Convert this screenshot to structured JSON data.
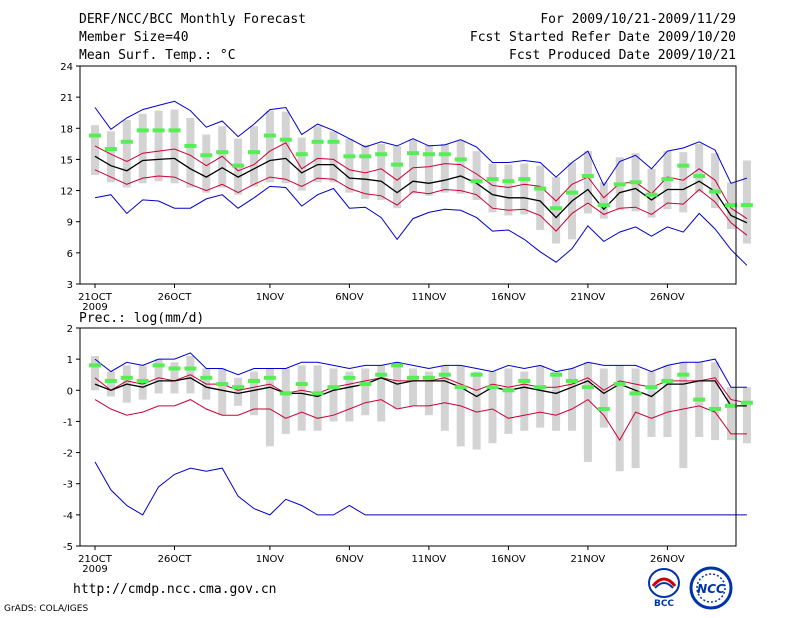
{
  "header": {
    "title": "DERF/NCC/BCC Monthly Forecast",
    "members": "Member Size=40",
    "variable": "Mean Surf. Temp.: °C",
    "period": "For 2009/10/21-2009/11/29",
    "started": "Fcst Started Refer Date 2009/10/20",
    "produced": "Fcst Produced Date 2009/10/21"
  },
  "footer": {
    "url": "http://cmdp.ncc.cma.gov.cn",
    "credit": "GrADS: COLA/IGES",
    "logo_left_text": "BCC",
    "logo_right_text": "NCC"
  },
  "colors": {
    "max": "#0000cc",
    "min": "#0000cc",
    "spread": "#cc0033",
    "mean": "#000000",
    "box": "#d3d3d3",
    "marker": "#55ee55"
  },
  "chart_data": [
    {
      "type": "line",
      "title": "Mean Surf. Temp.: °C",
      "ylim": [
        3,
        24
      ],
      "yticks": [
        3,
        6,
        9,
        12,
        15,
        18,
        21,
        24
      ],
      "xtick_labels": [
        "21OCT",
        "26OCT",
        "1NOV",
        "6NOV",
        "11NOV",
        "16NOV",
        "21NOV",
        "26NOV"
      ],
      "xtick_sub": "2009",
      "series": [
        {
          "name": "max",
          "values": [
            20.0,
            17.9,
            19.0,
            19.8,
            20.2,
            20.6,
            19.7,
            18.1,
            18.7,
            17.2,
            18.4,
            19.8,
            20.0,
            17.4,
            18.4,
            17.8,
            17.0,
            16.2,
            16.7,
            16.3,
            17.0,
            16.3,
            16.4,
            16.9,
            16.2,
            14.7,
            14.7,
            14.9,
            14.7,
            13.3,
            14.7,
            15.8,
            12.5,
            14.8,
            15.4,
            14.1,
            15.8,
            16.1,
            16.7,
            15.9,
            12.7,
            13.2
          ]
        },
        {
          "name": "upper",
          "values": [
            16.3,
            15.5,
            14.8,
            15.6,
            15.8,
            16.0,
            15.4,
            14.4,
            15.3,
            13.9,
            14.5,
            15.8,
            16.6,
            14.1,
            15.1,
            15.0,
            14.0,
            13.7,
            14.1,
            13.0,
            14.2,
            14.3,
            14.6,
            14.5,
            13.6,
            12.5,
            12.3,
            12.6,
            12.4,
            11.0,
            12.6,
            13.3,
            11.3,
            12.7,
            12.8,
            11.7,
            13.3,
            13.0,
            14.1,
            13.0,
            10.3,
            9.3
          ]
        },
        {
          "name": "mean",
          "values": [
            15.3,
            14.4,
            13.9,
            14.9,
            15.0,
            15.1,
            14.1,
            13.3,
            14.2,
            13.3,
            14.1,
            14.9,
            15.1,
            13.7,
            14.5,
            14.5,
            13.2,
            13.1,
            12.9,
            11.8,
            12.9,
            12.7,
            13.0,
            13.4,
            12.7,
            11.6,
            11.3,
            11.3,
            11.0,
            9.4,
            11.0,
            12.1,
            10.2,
            11.8,
            12.2,
            11.1,
            12.1,
            12.1,
            12.9,
            11.9,
            9.6,
            8.9
          ]
        },
        {
          "name": "lower",
          "values": [
            14.0,
            13.3,
            12.6,
            13.2,
            13.4,
            13.3,
            12.6,
            12.0,
            12.6,
            11.8,
            12.6,
            13.3,
            13.1,
            12.4,
            13.2,
            13.1,
            12.2,
            11.7,
            11.5,
            10.6,
            11.9,
            11.7,
            12.1,
            12.0,
            11.6,
            10.3,
            10.1,
            10.2,
            9.6,
            8.1,
            9.8,
            10.8,
            9.7,
            10.3,
            10.4,
            9.7,
            10.8,
            10.7,
            12.1,
            10.9,
            8.9,
            7.7
          ]
        },
        {
          "name": "min",
          "values": [
            11.3,
            11.6,
            9.8,
            11.1,
            11.0,
            10.3,
            10.3,
            11.2,
            11.6,
            10.3,
            11.3,
            12.4,
            12.3,
            10.5,
            11.6,
            12.2,
            10.3,
            10.4,
            9.4,
            7.3,
            9.3,
            9.9,
            10.2,
            10.1,
            9.4,
            8.1,
            8.2,
            7.3,
            6.1,
            5.1,
            6.4,
            8.6,
            7.1,
            8.0,
            8.5,
            7.6,
            8.5,
            8.0,
            9.8,
            8.3,
            6.3,
            4.8
          ]
        },
        {
          "name": "obs_marker",
          "values": [
            17.3,
            16.0,
            16.7,
            17.8,
            17.8,
            17.8,
            16.3,
            15.4,
            15.7,
            14.4,
            15.7,
            17.3,
            16.9,
            15.5,
            16.7,
            16.7,
            15.3,
            15.3,
            15.5,
            14.5,
            15.6,
            15.5,
            15.5,
            15.0,
            12.9,
            13.1,
            12.9,
            13.1,
            12.2,
            10.3,
            11.8,
            13.4,
            10.6,
            12.6,
            12.8,
            11.6,
            13.1,
            14.4,
            13.4,
            11.9,
            10.6,
            10.6
          ]
        },
        {
          "name": "box_top",
          "values": [
            18.3,
            17.7,
            18.8,
            19.4,
            19.7,
            19.8,
            19.0,
            17.4,
            18.2,
            17.0,
            18.2,
            19.7,
            19.6,
            17.1,
            18.2,
            17.7,
            17.0,
            16.4,
            16.5,
            16.3,
            16.9,
            16.4,
            16.5,
            16.8,
            15.8,
            14.6,
            14.5,
            14.6,
            14.4,
            13.3,
            14.7,
            15.8,
            12.8,
            15.2,
            15.6,
            14.1,
            15.8,
            15.7,
            16.5,
            15.6,
            12.8,
            14.9
          ]
        },
        {
          "name": "box_bottom",
          "values": [
            13.5,
            12.8,
            12.3,
            12.7,
            12.9,
            12.7,
            12.3,
            11.8,
            12.3,
            11.6,
            12.4,
            12.8,
            12.7,
            12.0,
            12.8,
            12.8,
            11.8,
            11.2,
            11.1,
            10.3,
            11.7,
            11.5,
            11.8,
            11.7,
            11.1,
            9.9,
            9.6,
            9.7,
            8.2,
            6.9,
            7.3,
            9.8,
            9.3,
            10.1,
            10.0,
            9.4,
            10.2,
            9.9,
            11.8,
            10.3,
            8.3,
            6.9
          ]
        }
      ]
    },
    {
      "type": "line",
      "title": "Prec.: log(mm/d)",
      "ylim": [
        -5,
        2
      ],
      "yticks": [
        -5,
        -4,
        -3,
        -2,
        -1,
        0,
        1,
        2
      ],
      "xtick_labels": [
        "21OCT",
        "26OCT",
        "1NOV",
        "6NOV",
        "11NOV",
        "16NOV",
        "21NOV",
        "26NOV"
      ],
      "xtick_sub": "2009",
      "series": [
        {
          "name": "max",
          "values": [
            1.0,
            0.6,
            0.9,
            0.8,
            1.0,
            1.0,
            1.2,
            0.7,
            0.7,
            0.5,
            0.7,
            0.7,
            0.7,
            0.9,
            0.9,
            0.8,
            0.7,
            0.8,
            0.8,
            0.9,
            0.8,
            0.7,
            0.8,
            0.8,
            0.7,
            0.6,
            0.8,
            0.7,
            0.8,
            0.6,
            0.7,
            0.9,
            0.8,
            0.8,
            0.8,
            0.6,
            0.8,
            0.9,
            0.9,
            1.0,
            0.1,
            0.1
          ]
        },
        {
          "name": "upper",
          "values": [
            0.4,
            0.0,
            0.3,
            0.2,
            0.4,
            0.3,
            0.5,
            0.2,
            0.2,
            0.0,
            0.1,
            0.2,
            -0.1,
            0.0,
            -0.1,
            0.1,
            0.2,
            0.3,
            0.4,
            0.3,
            0.3,
            0.3,
            0.4,
            0.2,
            0.0,
            0.2,
            0.1,
            0.2,
            0.1,
            0.1,
            0.2,
            0.4,
            0.0,
            0.3,
            0.2,
            0.1,
            0.3,
            0.3,
            0.3,
            0.4,
            -0.3,
            -0.4
          ]
        },
        {
          "name": "mean",
          "values": [
            0.2,
            0.0,
            0.2,
            0.1,
            0.3,
            0.3,
            0.4,
            0.1,
            0.0,
            -0.1,
            0.0,
            0.1,
            -0.1,
            -0.1,
            -0.2,
            0.0,
            0.1,
            0.2,
            0.4,
            0.2,
            0.3,
            0.3,
            0.3,
            0.1,
            -0.2,
            0.1,
            0.0,
            0.1,
            0.0,
            -0.1,
            0.1,
            0.3,
            -0.1,
            0.2,
            0.0,
            -0.2,
            0.2,
            0.2,
            0.3,
            0.3,
            -0.5,
            -0.5
          ]
        },
        {
          "name": "lower",
          "values": [
            -0.3,
            -0.6,
            -0.8,
            -0.7,
            -0.5,
            -0.5,
            -0.3,
            -0.6,
            -0.8,
            -0.8,
            -0.6,
            -0.6,
            -0.9,
            -0.7,
            -0.9,
            -0.8,
            -0.6,
            -0.4,
            -0.3,
            -0.6,
            -0.5,
            -0.5,
            -0.4,
            -0.5,
            -0.7,
            -0.6,
            -0.9,
            -0.8,
            -0.7,
            -0.8,
            -0.6,
            -0.3,
            -0.8,
            -1.6,
            -0.7,
            -0.9,
            -0.7,
            -0.6,
            -0.5,
            -0.7,
            -1.4,
            -1.4
          ]
        },
        {
          "name": "min",
          "values": [
            -2.3,
            -3.2,
            -3.7,
            -4.0,
            -3.1,
            -2.7,
            -2.5,
            -2.6,
            -2.5,
            -3.4,
            -3.8,
            -4.0,
            -3.5,
            -3.7,
            -4.0,
            -4.0,
            -3.7,
            -4.0,
            -4.0,
            -4.0,
            -4.0,
            -4.0,
            -4.0,
            -4.0,
            -4.0,
            -4.0,
            -4.0,
            -4.0,
            -4.0,
            -4.0,
            -4.0,
            -4.0,
            -4.0,
            -4.0,
            -4.0,
            -4.0,
            -4.0,
            -4.0,
            -4.0,
            -4.0,
            -4.0,
            -4.0
          ]
        },
        {
          "name": "obs_marker",
          "values": [
            0.8,
            0.3,
            0.4,
            0.3,
            0.8,
            0.7,
            0.7,
            0.4,
            0.2,
            0.1,
            0.3,
            0.4,
            -0.1,
            0.2,
            -0.1,
            0.1,
            0.4,
            0.2,
            0.5,
            0.8,
            0.4,
            0.4,
            0.5,
            0.1,
            0.5,
            0.1,
            0.0,
            0.3,
            0.1,
            0.5,
            0.3,
            0.1,
            -0.6,
            0.2,
            -0.1,
            0.1,
            0.3,
            0.5,
            -0.3,
            -0.6,
            -0.5,
            -0.4
          ]
        },
        {
          "name": "box_top",
          "values": [
            1.1,
            0.6,
            0.8,
            0.8,
            1.0,
            0.9,
            1.1,
            0.7,
            0.7,
            0.4,
            0.6,
            0.7,
            0.7,
            0.8,
            0.8,
            0.7,
            0.6,
            0.7,
            0.8,
            0.9,
            0.7,
            0.6,
            0.8,
            0.8,
            0.6,
            0.6,
            0.7,
            0.6,
            0.8,
            0.6,
            0.7,
            0.9,
            0.7,
            0.8,
            0.7,
            0.6,
            0.8,
            0.9,
            0.9,
            0.9,
            0.1,
            0.1
          ]
        },
        {
          "name": "box_bottom",
          "values": [
            0.0,
            -0.2,
            -0.4,
            -0.3,
            -0.1,
            -0.1,
            -0.1,
            -0.3,
            -0.8,
            -0.5,
            -0.8,
            -1.8,
            -1.4,
            -1.3,
            -1.3,
            -1.0,
            -1.0,
            -0.8,
            -1.0,
            -0.6,
            -0.5,
            -0.8,
            -1.3,
            -1.8,
            -1.9,
            -1.7,
            -1.4,
            -1.3,
            -1.2,
            -1.3,
            -1.3,
            -2.3,
            -1.2,
            -2.6,
            -2.5,
            -1.5,
            -1.5,
            -2.5,
            -1.5,
            -1.6,
            -1.6,
            -1.7
          ]
        }
      ]
    }
  ]
}
